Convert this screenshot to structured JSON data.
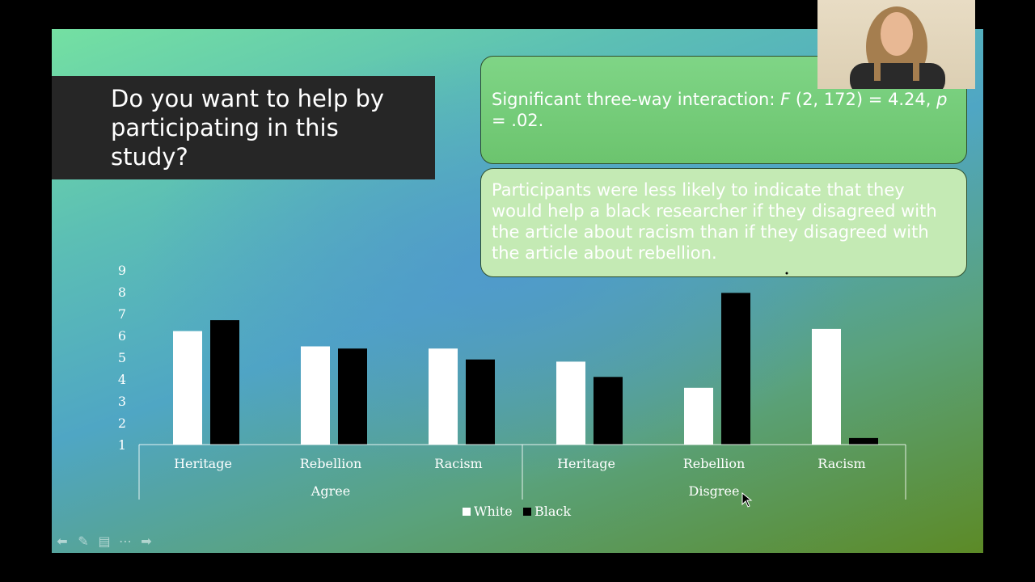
{
  "slide": {
    "title": "Do you want to help by participating in this study?",
    "callout_interaction_text": "Significant three-way interaction: ",
    "callout_interaction_f": "F",
    "callout_interaction_mid": " (2, 172) = 4.24, ",
    "callout_interaction_p": "p",
    "callout_interaction_end": " = .02.",
    "callout_finding": "Participants were less likely to indicate that they would help a black researcher if they disagreed with the article about racism than if they disagreed with the article about rebellion."
  },
  "chart_data": {
    "type": "bar",
    "categories": [
      "Heritage",
      "Rebellion",
      "Racism",
      "Heritage",
      "Rebellion",
      "Racism"
    ],
    "groups": [
      {
        "label": "Agree",
        "categories": [
          "Heritage",
          "Rebellion",
          "Racism"
        ]
      },
      {
        "label": "Disgree",
        "categories": [
          "Heritage",
          "Rebellion",
          "Racism"
        ]
      }
    ],
    "series": [
      {
        "name": "White",
        "color": "#ffffff",
        "values": [
          6.2,
          5.5,
          5.4,
          4.8,
          3.6,
          6.3
        ]
      },
      {
        "name": "Black",
        "color": "#000000",
        "values": [
          6.7,
          5.4,
          4.9,
          4.1,
          7.95,
          1.3
        ]
      }
    ],
    "yticks": [
      "1",
      "2",
      "3",
      "4",
      "5",
      "6",
      "7",
      "8",
      "9"
    ],
    "ylim": [
      1,
      9
    ],
    "legend_position": "bottom",
    "grid": false
  },
  "nav": {
    "icons": [
      "arrow-left-icon",
      "pen-icon",
      "slides-icon",
      "more-icon",
      "arrow-right-icon"
    ]
  }
}
